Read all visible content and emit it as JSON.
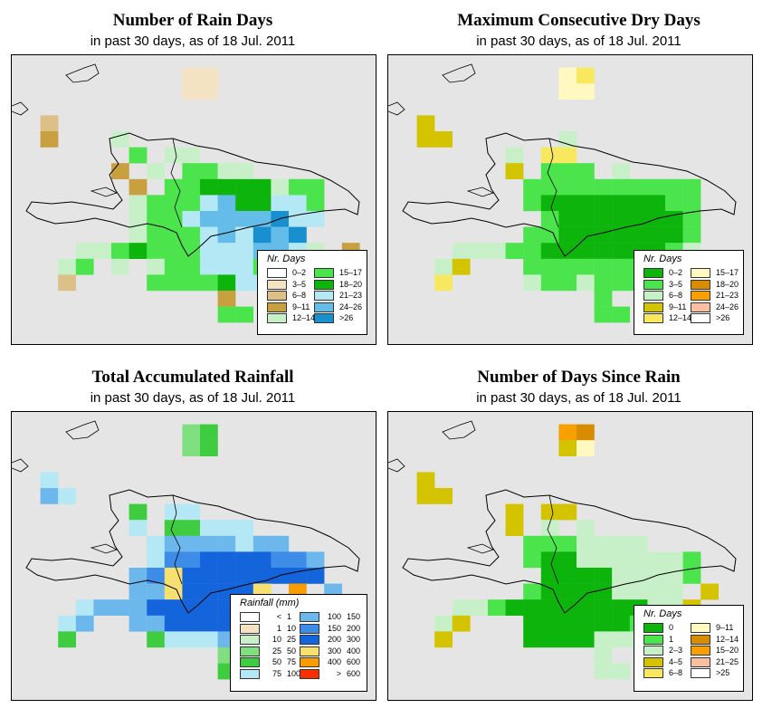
{
  "panels": [
    {
      "title": "Number of Rain Days",
      "subtitle": "in past 30 days, as of  18 Jul. 2011",
      "legend_title": "Nr. Days",
      "legend": [
        {
          "label": "0–2",
          "color": "#ffffff"
        },
        {
          "label": "3–5",
          "color": "#f3e3c3"
        },
        {
          "label": "6–8",
          "color": "#dcc088"
        },
        {
          "label": "9–11",
          "color": "#c8a040"
        },
        {
          "label": "12–14",
          "color": "#c8f0c8"
        },
        {
          "label": "15–17",
          "color": "#4ce44c"
        },
        {
          "label": "18–20",
          "color": "#0cb40c"
        },
        {
          "label": "21–23",
          "color": "#b4e8f4"
        },
        {
          "label": "24–26",
          "color": "#64bce8"
        },
        {
          "label": ">26",
          "color": "#1890d0"
        }
      ]
    },
    {
      "title": "Maximum Consecutive Dry Days",
      "subtitle": "in past 30 days, as of  18 Jul. 2011",
      "legend_title": "Nr. Days",
      "legend": [
        {
          "label": "0–2",
          "color": "#0cb40c"
        },
        {
          "label": "3–5",
          "color": "#4ce44c"
        },
        {
          "label": "6–8",
          "color": "#c8f0c8"
        },
        {
          "label": "9–11",
          "color": "#d4c400"
        },
        {
          "label": "12–14",
          "color": "#f8e860"
        },
        {
          "label": "15–17",
          "color": "#fff8c0"
        },
        {
          "label": "18–20",
          "color": "#d88c00"
        },
        {
          "label": "21–23",
          "color": "#f8a000"
        },
        {
          "label": "24–26",
          "color": "#f8c0a0"
        },
        {
          "label": ">26",
          "color": "#ffffff"
        }
      ]
    },
    {
      "title": "Total Accumulated Rainfall",
      "subtitle": "in past 30 days, as of  18 Jul. 2011",
      "legend_title": "Rainfall (mm)",
      "legend": [
        {
          "lo": "<",
          "hi": "1",
          "color": "#ffffff"
        },
        {
          "lo": "1",
          "hi": "10",
          "color": "#f3e3c3"
        },
        {
          "lo": "10",
          "hi": "25",
          "color": "#c8f0c8"
        },
        {
          "lo": "25",
          "hi": "50",
          "color": "#80e080"
        },
        {
          "lo": "50",
          "hi": "75",
          "color": "#40cc40"
        },
        {
          "lo": "75",
          "hi": "100",
          "color": "#b4e8f4"
        },
        {
          "lo": "100",
          "hi": "150",
          "color": "#6cb8ec"
        },
        {
          "lo": "150",
          "hi": "200",
          "color": "#3c8ce8"
        },
        {
          "lo": "200",
          "hi": "300",
          "color": "#1464dc"
        },
        {
          "lo": "300",
          "hi": "400",
          "color": "#f8e070"
        },
        {
          "lo": "400",
          "hi": "600",
          "color": "#f89c00"
        },
        {
          "lo": ">",
          "hi": "600",
          "color": "#f83000"
        }
      ]
    },
    {
      "title": "Number of Days Since Rain",
      "subtitle": "in past 30 days, as of  18 Jul. 2011",
      "legend_title": "Nr. Days",
      "legend": [
        {
          "label": "0",
          "color": "#0cb40c"
        },
        {
          "label": "1",
          "color": "#4ce44c"
        },
        {
          "label": "2–3",
          "color": "#c8f0c8"
        },
        {
          "label": "4–5",
          "color": "#d4c400"
        },
        {
          "label": "6–8",
          "color": "#f8e860"
        },
        {
          "label": "9–11",
          "color": "#fff8c0"
        },
        {
          "label": "12–14",
          "color": "#d88c00"
        },
        {
          "label": "15–20",
          "color": "#f8a000"
        },
        {
          "label": "21–25",
          "color": "#f8c0a0"
        },
        {
          "label": ">25",
          "color": "#ffffff"
        }
      ]
    }
  ],
  "grids": [
    [
      "..................................................",
      "....HH...........",
      "..."
    ],
    [],
    [],
    []
  ]
}
